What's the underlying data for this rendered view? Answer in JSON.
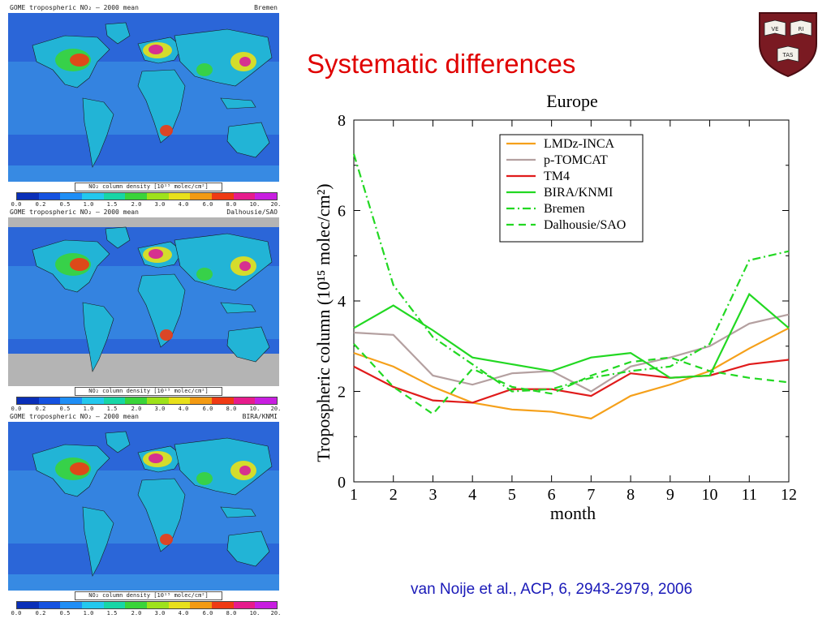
{
  "slide": {
    "title": "Systematic differences",
    "citation": "van Noije et al., ACP, 6, 2943-2979, 2006"
  },
  "maps": [
    {
      "title": "GOME tropospheric NO₂ – 2000 mean",
      "source": "Bremen"
    },
    {
      "title": "GOME tropospheric NO₂ – 2000 mean",
      "source": "Dalhousie/SAO"
    },
    {
      "title": "GOME tropospheric NO₂ – 2000 mean",
      "source": "BIRA/KNMI"
    }
  ],
  "colorbar": {
    "title": "NO₂ column density [10¹⁵ molec/cm²]",
    "ticks": [
      "0.0",
      "0.2",
      "0.5",
      "1.0",
      "1.5",
      "2.0",
      "3.0",
      "4.0",
      "6.0",
      "8.0",
      "10.",
      "20."
    ],
    "colors": [
      "#0a2fb8",
      "#1552e0",
      "#1f8ef5",
      "#23c8ee",
      "#17d6a6",
      "#3ad43a",
      "#9ee21a",
      "#e8e01a",
      "#f39a12",
      "#ef3a14",
      "#e61c8c",
      "#c81ee0"
    ]
  },
  "map_colors": {
    "ocean": "#2b66d8",
    "ocean_light": "#3d9ae8",
    "land": "#22b4d6",
    "hotspot_1": "#3ad43a",
    "hotspot_2": "#e8e01a",
    "hotspot_3": "#ef3a14",
    "hotspot_4": "#d61e9a",
    "nodata": "#b4b4b4"
  },
  "chart_data": {
    "type": "line",
    "title": "Europe",
    "xlabel": "month",
    "ylabel": "Tropospheric column (10¹⁵ molec/cm²)",
    "xlim": [
      1,
      12
    ],
    "ylim": [
      0,
      8
    ],
    "x": [
      1,
      2,
      3,
      4,
      5,
      6,
      7,
      8,
      9,
      10,
      11,
      12
    ],
    "xticks": [
      1,
      2,
      3,
      4,
      5,
      6,
      7,
      8,
      9,
      10,
      11,
      12
    ],
    "yticks": [
      0,
      2,
      4,
      6,
      8
    ],
    "legend_position": "top-right",
    "series": [
      {
        "name": "LMDz-INCA",
        "color": "#f5a01a",
        "dash": "solid",
        "values": [
          2.85,
          2.55,
          2.1,
          1.75,
          1.6,
          1.55,
          1.4,
          1.9,
          2.15,
          2.45,
          2.95,
          3.4
        ]
      },
      {
        "name": "p-TOMCAT",
        "color": "#b4a0a0",
        "dash": "solid",
        "values": [
          3.3,
          3.25,
          2.35,
          2.15,
          2.4,
          2.45,
          2.0,
          2.55,
          2.75,
          3.0,
          3.5,
          3.7
        ]
      },
      {
        "name": "TM4",
        "color": "#e01b1b",
        "dash": "solid",
        "values": [
          2.55,
          2.1,
          1.8,
          1.75,
          2.05,
          2.05,
          1.9,
          2.4,
          2.3,
          2.35,
          2.6,
          2.7
        ]
      },
      {
        "name": "BIRA/KNMI",
        "color": "#22d822",
        "dash": "solid",
        "values": [
          3.4,
          3.9,
          3.35,
          2.75,
          2.6,
          2.45,
          2.75,
          2.85,
          2.3,
          2.35,
          4.15,
          3.4
        ]
      },
      {
        "name": "Bremen",
        "color": "#22d822",
        "dash": "dashdot",
        "values": [
          7.25,
          4.35,
          3.2,
          2.6,
          2.0,
          2.05,
          2.3,
          2.45,
          2.55,
          3.05,
          4.9,
          5.1
        ]
      },
      {
        "name": "Dalhousie/SAO",
        "color": "#22d822",
        "dash": "dashed",
        "values": [
          3.05,
          2.1,
          1.5,
          2.5,
          2.1,
          1.95,
          2.35,
          2.65,
          2.75,
          2.45,
          2.3,
          2.2
        ]
      }
    ]
  },
  "crest": {
    "letters": [
      "VE",
      "RI",
      "TAS"
    ],
    "color": "#7a1a22"
  }
}
